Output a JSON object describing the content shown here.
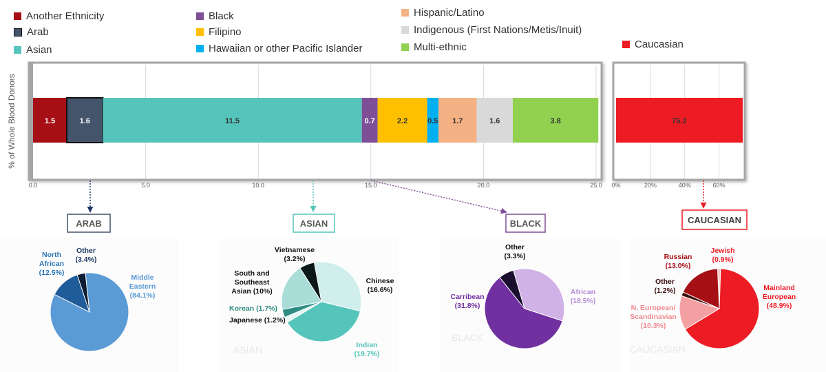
{
  "chart_data": [
    {
      "type": "bar",
      "orientation": "horizontal",
      "stacked": true,
      "ylabel": "% of Whole Blood Donors",
      "xlim": [
        0,
        25
      ],
      "x_ticks": [
        "0.0",
        "5.0",
        "10.0",
        "15.0",
        "20.0",
        "25.0"
      ],
      "series": [
        {
          "name": "Another Ethnicity",
          "value": 1.5,
          "label": "1.5",
          "color": "#A50F15",
          "label_color": "#ffffff"
        },
        {
          "name": "Arab",
          "value": 1.6,
          "label": "1.6",
          "color": "#44546A",
          "label_color": "#ffffff"
        },
        {
          "name": "Asian",
          "value": 11.5,
          "label": "11.5",
          "color": "#55C4BA",
          "label_color": "#333333"
        },
        {
          "name": "Black",
          "value": 0.7,
          "label": "0.7",
          "color": "#7E4F97",
          "label_color": "#ffffff"
        },
        {
          "name": "Filipino",
          "value": 2.2,
          "label": "2.2",
          "color": "#FFC000",
          "label_color": "#333333"
        },
        {
          "name": "Hawaiian or other Pacific Islander",
          "value": 0.5,
          "label": "0.5",
          "color": "#00B0F0",
          "label_color": "#333333"
        },
        {
          "name": "Hispanic/Latino",
          "value": 1.7,
          "label": "1.7",
          "color": "#F4B183",
          "label_color": "#333333"
        },
        {
          "name": "Indigenous (First Nations/Metis/Inuit)",
          "value": 1.6,
          "label": "1.6",
          "color": "#D9D9D9",
          "label_color": "#333333"
        },
        {
          "name": "Multi-ethnic",
          "value": 3.8,
          "label": "3.8",
          "color": "#92D050",
          "label_color": "#333333"
        }
      ]
    },
    {
      "type": "bar",
      "orientation": "horizontal",
      "xlim": [
        0,
        75
      ],
      "x_ticks": [
        "0%",
        "20%",
        "40%",
        "60%"
      ],
      "series": [
        {
          "name": "Caucasian",
          "value": 75.2,
          "label": "75.2",
          "color": "#ED1C24",
          "label_color": "#333333"
        }
      ]
    },
    {
      "type": "pie",
      "title": "ARAB",
      "title_color": "#595959",
      "box_color": "#44546A",
      "watermark": "",
      "slices": [
        {
          "name": "Middle Eastern",
          "value": 84.1,
          "label": "Middle|Eastern|(84.1%)",
          "color": "#5B9BD5",
          "label_color": "#5B9BD5"
        },
        {
          "name": "North African",
          "value": 12.5,
          "label": "North|African|(12.5%)",
          "color": "#1F5C99",
          "label_color": "#2E75B6"
        },
        {
          "name": "Other",
          "value": 3.4,
          "label": "Other|(3.4%)",
          "color": "#0D1D33",
          "label_color": "#1F3864"
        }
      ]
    },
    {
      "type": "pie",
      "title": "ASIAN",
      "title_color": "#595959",
      "box_color": "#55C4BA",
      "watermark": "ASIAN",
      "slices": [
        {
          "name": "Chinese",
          "value": 16.6,
          "label": "Chinese|(16.6%)",
          "color": "#CFEEEC",
          "label_color": "#111111"
        },
        {
          "name": "Indian",
          "value": 19.7,
          "label": "Indian|(19.7%)",
          "color": "#55C4BA",
          "label_color": "#55C4BA"
        },
        {
          "name": "Japanese",
          "value": 1.2,
          "label": "Japanese (1.2%)",
          "color": "#E6F6F4",
          "label_color": "#111111"
        },
        {
          "name": "Korean",
          "value": 1.7,
          "label": "Korean (1.7%)",
          "color": "#2E8C82",
          "label_color": "#2E8C82"
        },
        {
          "name": "South and Southeast Asian",
          "value": 10,
          "label": "South and|Southeast|Asian (10%)",
          "color": "#A8DDD8",
          "label_color": "#111111"
        },
        {
          "name": "Vietnamese",
          "value": 3.2,
          "label": "Vietnamese|(3.2%)",
          "color": "#0B1A18",
          "label_color": "#111111"
        }
      ]
    },
    {
      "type": "pie",
      "title": "BLACK",
      "title_color": "#595959",
      "box_color": "#7E4F97",
      "watermark": "BLACK",
      "slices": [
        {
          "name": "African",
          "value": 18.5,
          "label": "African|(18.5%)",
          "color": "#D1B2E6",
          "label_color": "#B48CD8"
        },
        {
          "name": "Carribean",
          "value": 31.8,
          "label": "Carribean|(31.8%)",
          "color": "#7030A0",
          "label_color": "#7030A0"
        },
        {
          "name": "Other",
          "value": 3.3,
          "label": "Other|(3.3%)",
          "color": "#1A0F2E",
          "label_color": "#111111"
        }
      ]
    },
    {
      "type": "pie",
      "title": "CAUCASIAN",
      "title_color": "#404040",
      "box_color": "#ED1C24",
      "watermark": "CAUCASIAN",
      "slices": [
        {
          "name": "Jewish",
          "value": 0.9,
          "label": "Jewish|(0.9%)",
          "color": "#F4C6C6",
          "label_color": "#ED1C24"
        },
        {
          "name": "Mainland European",
          "value": 48.9,
          "label": "Mainland|European|(48.9%)",
          "color": "#ED1C24",
          "label_color": "#ED1C24"
        },
        {
          "name": "N. European/ Scandinavian",
          "value": 10.3,
          "label": "N. European/|Scandinavian|(10.3%)",
          "color": "#F4A0A3",
          "label_color": "#F08A8E"
        },
        {
          "name": "Other",
          "value": 1.2,
          "label": "Other|(1.2%)",
          "color": "#3A0A0A",
          "label_color": "#3A0A0A"
        },
        {
          "name": "Russian",
          "value": 13.0,
          "label": "Russian|(13.0%)",
          "color": "#A50F15",
          "label_color": "#A50F15"
        }
      ]
    }
  ]
}
